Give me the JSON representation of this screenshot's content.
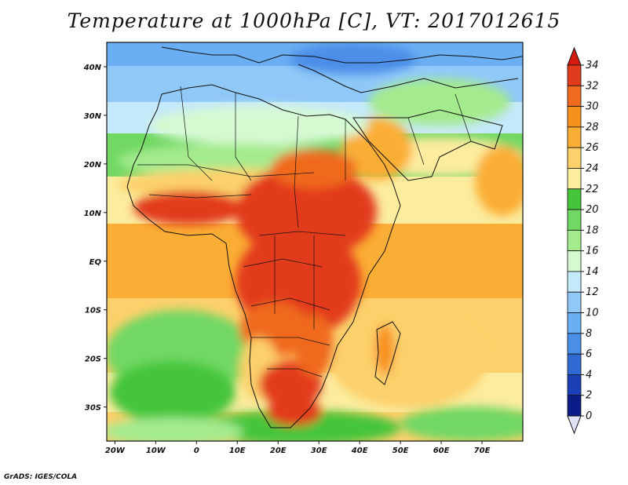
{
  "title": "Temperature at 1000hPa [C], VT: 2017012615",
  "footer": "GrADS: IGES/COLA",
  "map": {
    "lon_range": [
      -22,
      80
    ],
    "lat_range": [
      -37,
      45
    ],
    "lon_ticks": [
      "20W",
      "10W",
      "0",
      "10E",
      "20E",
      "30E",
      "40E",
      "50E",
      "60E",
      "70E"
    ],
    "lat_ticks": [
      "40N",
      "30N",
      "20N",
      "10N",
      "EQ",
      "10S",
      "20S",
      "30S"
    ]
  },
  "colorbar": {
    "labels": [
      "34",
      "32",
      "30",
      "28",
      "26",
      "24",
      "22",
      "20",
      "18",
      "16",
      "14",
      "12",
      "10",
      "8",
      "6",
      "4",
      "2",
      "0"
    ],
    "colors": [
      "#e23a1c",
      "#f06a1e",
      "#f8901c",
      "#fbae35",
      "#fcd06a",
      "#fcec9e",
      "#45c53a",
      "#71d863",
      "#a4eb8e",
      "#d6f9d2",
      "#c4e9fb",
      "#90c9f8",
      "#6aaef3",
      "#4b8ee8",
      "#2f6ad4",
      "#1a3fb6",
      "#0c1c88"
    ],
    "over_color": "#d41b10",
    "under_color": "#e0e0f6"
  }
}
